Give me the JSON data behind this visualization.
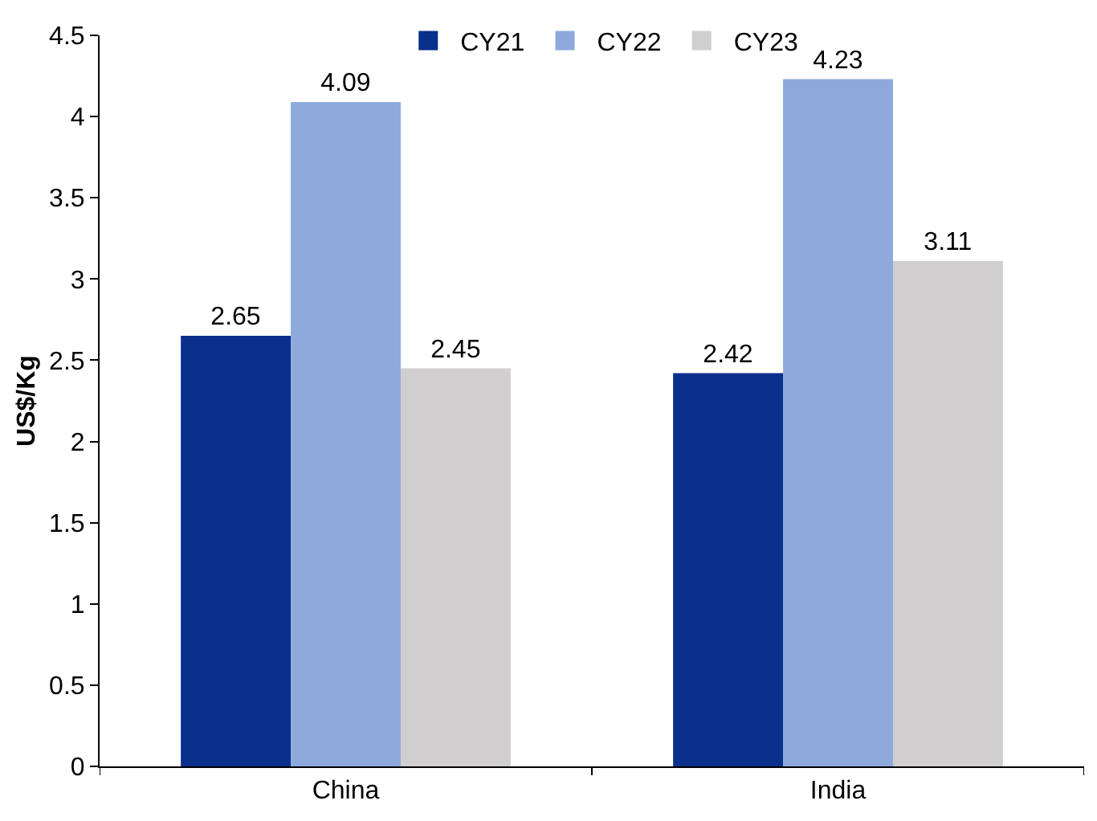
{
  "chart_data": {
    "type": "bar",
    "ylabel": "US$/Kg",
    "categories": [
      "China",
      "India"
    ],
    "series": [
      {
        "name": "CY21",
        "color": "#0a2f8c",
        "values": [
          2.65,
          2.42
        ]
      },
      {
        "name": "CY22",
        "color": "#8eaadc",
        "values": [
          4.09,
          4.23
        ]
      },
      {
        "name": "CY23",
        "color": "#d0cece",
        "values": [
          2.45,
          3.11
        ]
      }
    ],
    "ylim": [
      0,
      4.5
    ],
    "yticks": [
      0,
      0.5,
      1,
      1.5,
      2,
      2.5,
      3,
      3.5,
      4,
      4.5
    ],
    "data_labels": true,
    "legend": "top"
  }
}
